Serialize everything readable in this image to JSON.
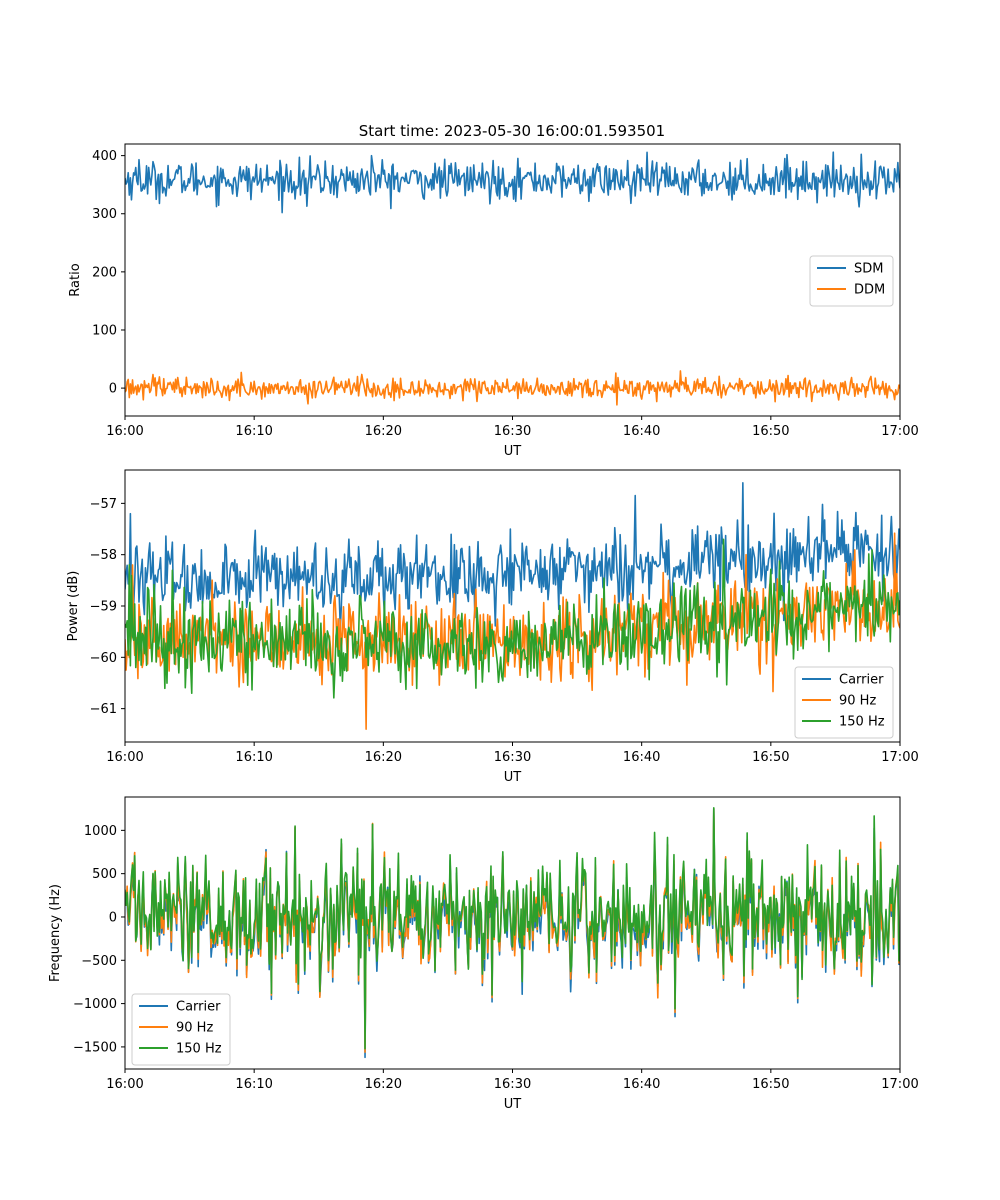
{
  "figure": {
    "title": "Start time: 2023-05-30 16:00:01.593501"
  },
  "colors": {
    "blue": "#1f77b4",
    "orange": "#ff7f0e",
    "green": "#2ca02c"
  },
  "chart_data": [
    {
      "type": "line",
      "title": "Start time: 2023-05-30 16:00:01.593501",
      "xlabel": "UT",
      "ylabel": "Ratio",
      "xlim": [
        "16:00",
        "17:00"
      ],
      "ylim": [
        -48,
        420
      ],
      "xticks": [
        "16:00",
        "16:10",
        "16:20",
        "16:30",
        "16:40",
        "16:50",
        "17:00"
      ],
      "yticks": [
        0,
        100,
        200,
        300,
        400
      ],
      "grid": false,
      "legend": "center-right",
      "series": [
        {
          "name": "SDM",
          "color": "#1f77b4",
          "mean": 358,
          "spread": 16,
          "extremes": [
            [
              1.1,
              393
            ],
            [
              14.1,
              313
            ],
            [
              19.1,
              400
            ],
            [
              39.2,
              318
            ],
            [
              51.1,
              395
            ]
          ]
        },
        {
          "name": "DDM",
          "color": "#ff7f0e",
          "mean": 0,
          "spread": 9,
          "extremes": [
            [
              9.0,
              27
            ],
            [
              14.2,
              -27
            ],
            [
              38.0,
              26
            ]
          ]
        }
      ]
    },
    {
      "type": "line",
      "title": "",
      "xlabel": "UT",
      "ylabel": "Power (dB)",
      "xlim": [
        "16:00",
        "17:00"
      ],
      "ylim": [
        -61.65,
        -56.35
      ],
      "xticks": [
        "16:00",
        "16:10",
        "16:20",
        "16:30",
        "16:40",
        "16:50",
        "17:00"
      ],
      "yticks": [
        -61,
        -60,
        -59,
        -58,
        -57
      ],
      "grid": false,
      "legend": "lower-right",
      "series": [
        {
          "name": "Carrier",
          "color": "#1f77b4",
          "trend": [
            [
              0,
              -58.5
            ],
            [
              30,
              -58.4
            ],
            [
              60,
              -57.9
            ]
          ],
          "spread": 0.35,
          "extremes": [
            [
              0.4,
              -57.2
            ],
            [
              29.8,
              -57.5
            ],
            [
              47.8,
              -56.6
            ],
            [
              59.9,
              -57.5
            ]
          ]
        },
        {
          "name": "90 Hz",
          "color": "#ff7f0e",
          "trend": [
            [
              0,
              -59.6
            ],
            [
              30,
              -59.7
            ],
            [
              60,
              -59.0
            ]
          ],
          "spread": 0.4,
          "extremes": [
            [
              0.6,
              -58.2
            ],
            [
              18.7,
              -61.4
            ],
            [
              48.1,
              -58.0
            ]
          ]
        },
        {
          "name": "150 Hz",
          "color": "#2ca02c",
          "trend": [
            [
              0,
              -59.6
            ],
            [
              30,
              -59.8
            ],
            [
              60,
              -58.9
            ]
          ],
          "spread": 0.4,
          "extremes": [
            [
              0.3,
              -58.2
            ],
            [
              5.2,
              -60.7
            ],
            [
              27.2,
              -60.6
            ],
            [
              46.3,
              -57.7
            ]
          ]
        }
      ]
    },
    {
      "type": "line",
      "title": "",
      "xlabel": "UT",
      "ylabel": "Frequency (Hz)",
      "xlim": [
        "16:00",
        "17:00"
      ],
      "ylim": [
        -1755,
        1385
      ],
      "xticks": [
        "16:00",
        "16:10",
        "16:20",
        "16:30",
        "16:40",
        "16:50",
        "17:00"
      ],
      "yticks": [
        -1500,
        -1000,
        -500,
        0,
        500,
        1000
      ],
      "grid": false,
      "legend": "lower-left",
      "series": [
        {
          "name": "Carrier",
          "color": "#1f77b4",
          "mean": -30,
          "spread": 340,
          "extremes": [
            [
              11.3,
              -950
            ],
            [
              13.2,
              1030
            ],
            [
              18.6,
              -1620
            ],
            [
              19.2,
              1070
            ],
            [
              28.4,
              -980
            ],
            [
              42.6,
              -1150
            ],
            [
              45.6,
              1250
            ],
            [
              52.1,
              -990
            ]
          ]
        },
        {
          "name": "90 Hz",
          "color": "#ff7f0e",
          "mean": 0,
          "spread": 340,
          "extremes": [
            [
              11.3,
              -900
            ],
            [
              13.2,
              1040
            ],
            [
              18.6,
              -1560
            ],
            [
              19.2,
              1080
            ],
            [
              28.4,
              -930
            ],
            [
              42.6,
              -1100
            ],
            [
              45.6,
              1255
            ],
            [
              52.1,
              -940
            ]
          ]
        },
        {
          "name": "150 Hz",
          "color": "#2ca02c",
          "mean": 60,
          "spread": 340,
          "extremes": [
            [
              11.3,
              -880
            ],
            [
              13.2,
              1050
            ],
            [
              18.6,
              -1520
            ],
            [
              19.2,
              1070
            ],
            [
              28.4,
              -900
            ],
            [
              42.6,
              -1060
            ],
            [
              45.6,
              1260
            ],
            [
              52.1,
              -920
            ]
          ]
        }
      ]
    }
  ]
}
